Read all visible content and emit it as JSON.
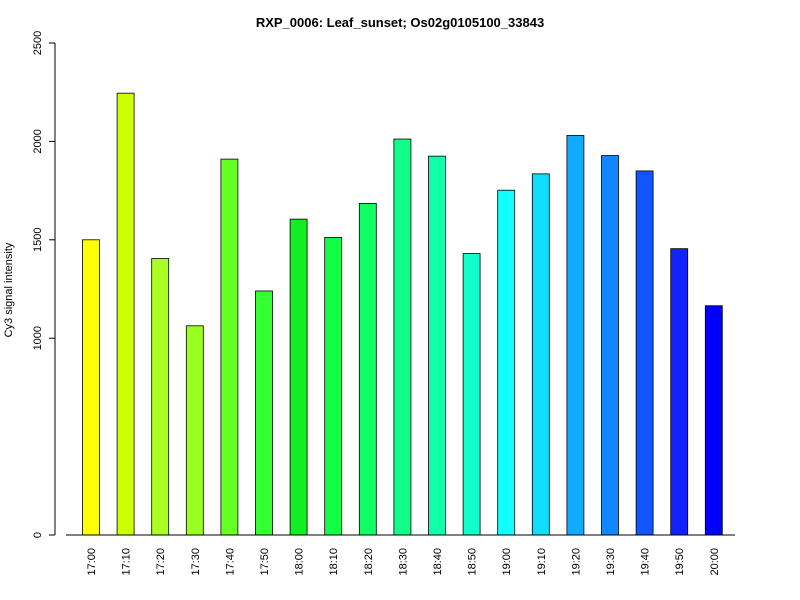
{
  "chart_data": {
    "type": "bar",
    "title": "RXP_0006: Leaf_sunset; Os02g0105100_33843",
    "xlabel": "",
    "ylabel": "Cy3 signal intensity",
    "ylim": [
      0,
      2500
    ],
    "y_ticks": [
      0,
      1000,
      1500,
      2000,
      2500
    ],
    "grid": false,
    "legend": "none",
    "categories": [
      "17:00",
      "17:10",
      "17:20",
      "17:30",
      "17:40",
      "17:50",
      "18:00",
      "18:10",
      "18:20",
      "18:30",
      "18:40",
      "18:50",
      "19:00",
      "19:10",
      "19:20",
      "19:30",
      "19:40",
      "19:50",
      "20:00"
    ],
    "values": [
      1500,
      2245,
      1405,
      1063,
      1910,
      1240,
      1605,
      1512,
      1685,
      2012,
      1925,
      1430,
      1752,
      1835,
      2030,
      1928,
      1850,
      1455,
      1165
    ],
    "colors": [
      "#ffff00",
      "#ccff00",
      "#aaff22",
      "#99ff22",
      "#66ff22",
      "#33ff33",
      "#11ee22",
      "#11ff44",
      "#11ff66",
      "#11ff88",
      "#11ffaa",
      "#11ffcc",
      "#11ffff",
      "#11ddff",
      "#11aaff",
      "#1188ff",
      "#1155ff",
      "#1122ff",
      "#0000ff"
    ]
  }
}
